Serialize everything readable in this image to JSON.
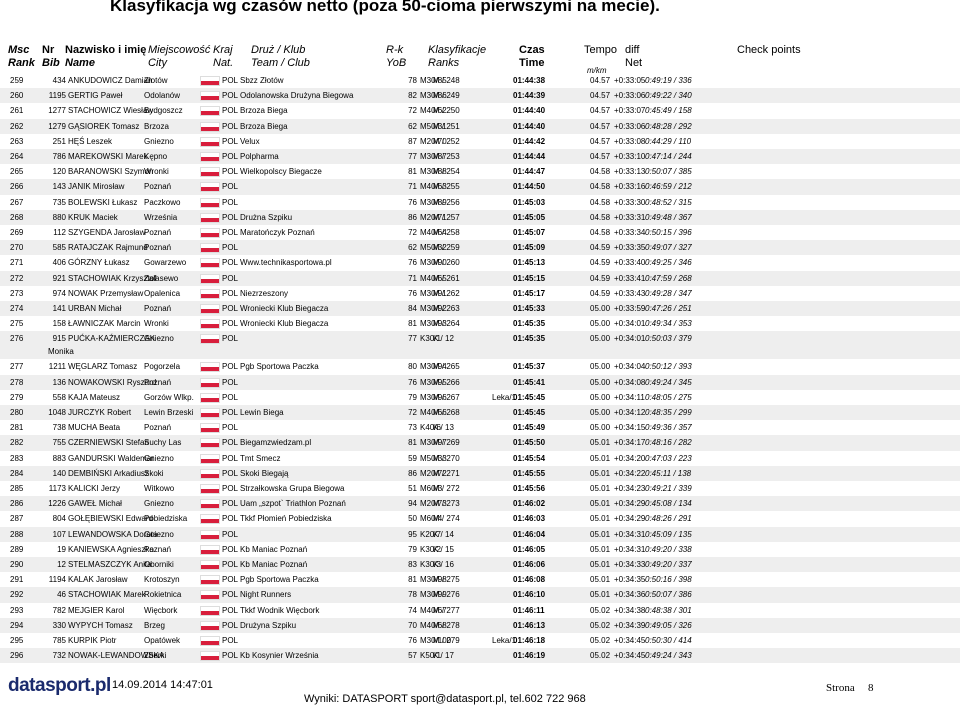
{
  "title": "Klasyfikacja wg czasów netto (poza 50-cioma pierwszymi na mecie).",
  "header": {
    "top": [
      "Msc",
      "Nr",
      "Nazwisko i imię",
      "Miejscowość",
      "Kraj",
      "Druż / Klub",
      "R-k",
      "Klasyfikacje",
      "Czas",
      "Tempo",
      "diff",
      "Check points"
    ],
    "bottom": [
      "Rank",
      "Bib",
      "Name",
      "City",
      "Nat.",
      "Team / Club",
      "YoB",
      "Ranks",
      "Time",
      "m/km",
      "Net"
    ]
  },
  "rows": [
    {
      "cells": [
        "259",
        "434",
        "ANKUDOWICZ Damian",
        "Złotów",
        "POL",
        "Sbzz Złotów",
        "78",
        "M30/85",
        "M / 248",
        "01:44:38",
        "04.57",
        "+0:33:05",
        "0:49:19 / 336"
      ]
    },
    {
      "cells": [
        "260",
        "1195",
        "GERTIG Paweł",
        "Odolanów",
        "POL",
        "Odolanowska Drużyna Biegowa",
        "82",
        "M30/86",
        "M / 249",
        "01:44:39",
        "04.57",
        "+0:33:06",
        "0:49:22 / 340"
      ]
    },
    {
      "cells": [
        "261",
        "1277",
        "STACHOWICZ Wiesław",
        "Bydgoszcz",
        "POL",
        "Brzoza Biega",
        "72",
        "M40/62",
        "M / 250",
        "01:44:40",
        "04.57",
        "+0:33:07",
        "0:45:49 / 158"
      ]
    },
    {
      "cells": [
        "262",
        "1279",
        "GĄSIOREK Tomasz",
        "Brzoza",
        "POL",
        "Brzoza Biega",
        "62",
        "M50/31",
        "M / 251",
        "01:44:40",
        "04.57",
        "+0:33:06",
        "0:48:28 / 292"
      ]
    },
    {
      "cells": [
        "263",
        "251",
        "HĘŚ Leszek",
        "Gniezno",
        "POL",
        "Velux",
        "87",
        "M20/70",
        "M / 252",
        "01:44:42",
        "04.57",
        "+0:33:08",
        "0:44:29 / 110"
      ]
    },
    {
      "cells": [
        "264",
        "786",
        "MAREKOWSKI Marek",
        "Kępno",
        "POL",
        "Polpharma",
        "77",
        "M30/87",
        "M / 253",
        "01:44:44",
        "04.57",
        "+0:33:10",
        "0:47:14 / 244"
      ]
    },
    {
      "cells": [
        "265",
        "120",
        "BARANOWSKI Szymon",
        "Wronki",
        "POL",
        "Wielkopolscy Biegacze",
        "81",
        "M30/88",
        "M / 254",
        "01:44:47",
        "04.58",
        "+0:33:13",
        "0:50:07 / 385"
      ]
    },
    {
      "cells": [
        "266",
        "143",
        "JANIK Mirosław",
        "Poznań",
        "POL",
        "",
        "71",
        "M40/63",
        "M / 255",
        "01:44:50",
        "04.58",
        "+0:33:16",
        "0:46:59 / 212"
      ]
    },
    {
      "cells": [
        "267",
        "735",
        "BOLEWSKI Łukasz",
        "Paczkowo",
        "POL",
        "",
        "76",
        "M30/89",
        "M / 256",
        "01:45:03",
        "04.58",
        "+0:33:30",
        "0:48:52 / 315"
      ]
    },
    {
      "cells": [
        "268",
        "880",
        "KRUK Maciek",
        "Września",
        "POL",
        "Drużna Szpiku",
        "86",
        "M20/71",
        "M / 257",
        "01:45:05",
        "04.58",
        "+0:33:31",
        "0:49:48 / 367"
      ]
    },
    {
      "cells": [
        "269",
        "112",
        "SZYGENDA Jarosław",
        "Poznań",
        "POL",
        "Maratończyk Poznań",
        "72",
        "M40/64",
        "M / 258",
        "01:45:07",
        "04.58",
        "+0:33:34",
        "0:50:15 / 396"
      ]
    },
    {
      "cells": [
        "270",
        "585",
        "RATAJCZAK Rajmund",
        "Poznań",
        "POL",
        "",
        "62",
        "M50/32",
        "M / 259",
        "01:45:09",
        "04.59",
        "+0:33:35",
        "0:49:07 / 327"
      ]
    },
    {
      "cells": [
        "271",
        "406",
        "GÓRZNY Łukasz",
        "Gowarzewo",
        "POL",
        "Www.technikasportowa.pl",
        "76",
        "M30/90",
        "M / 260",
        "01:45:13",
        "04.59",
        "+0:33:40",
        "0:49:25 / 346"
      ]
    },
    {
      "cells": [
        "272",
        "921",
        "STACHOWIAK Krzysztof",
        "Zalasewo",
        "POL",
        "",
        "71",
        "M40/65",
        "M / 261",
        "01:45:15",
        "04.59",
        "+0:33:41",
        "0:47:59 / 268"
      ]
    },
    {
      "cells": [
        "273",
        "974",
        "NOWAK Przemysław",
        "Opalenica",
        "POL",
        "Niezrzeszony",
        "76",
        "M30/91",
        "M / 262",
        "01:45:17",
        "04.59",
        "+0:33:43",
        "0:49:28 / 347"
      ]
    },
    {
      "cells": [
        "274",
        "141",
        "URBAN Michał",
        "Poznań",
        "POL",
        "Wroniecki Klub Biegacza",
        "84",
        "M30/92",
        "M / 263",
        "01:45:33",
        "05.00",
        "+0:33:59",
        "0:47:26 / 251"
      ]
    },
    {
      "cells": [
        "275",
        "158",
        "ŁAWNICZAK Marcin",
        "Wronki",
        "POL",
        "Wroniecki Klub Biegacza",
        "81",
        "M30/93",
        "M / 264",
        "01:45:35",
        "05.00",
        "+0:34:01",
        "0:49:34 / 353"
      ]
    },
    {
      "cells": [
        "276",
        "915",
        "PUĆKA-KAŹMIERCZAK",
        "Gniezno",
        "POL",
        "",
        "77",
        "K30/1",
        "K / 12",
        "01:45:35",
        "05.00",
        "+0:34:01",
        "0:50:03 / 379"
      ],
      "name2": "Monika"
    },
    {
      "cells": [
        "277",
        "1211",
        "WĘGLARZ Tomasz",
        "Pogorzela",
        "POL",
        "Pgb Sportowa Paczka",
        "80",
        "M30/94",
        "M / 265",
        "01:45:37",
        "05.00",
        "+0:34:04",
        "0:50:12 / 393"
      ]
    },
    {
      "cells": [
        "278",
        "136",
        "NOWAKOWSKI Ryszard",
        "Poznań",
        "POL",
        "",
        "76",
        "M30/95",
        "M / 266",
        "01:45:41",
        "05.00",
        "+0:34:08",
        "0:49:24 / 345"
      ]
    },
    {
      "cells": [
        "279",
        "558",
        "KAJA Mateusz",
        "Gorzów Wlkp.",
        "POL",
        "",
        "79",
        "M30/96",
        "M / 267",
        "01:45:45",
        "05.00",
        "+0:34:11",
        "0:48:05 / 275"
      ],
      "note": "Leka/1"
    },
    {
      "cells": [
        "280",
        "1048",
        "JURCZYK Robert",
        "Lewin Brzeski",
        "POL",
        "Lewin Biega",
        "72",
        "M40/66",
        "M / 268",
        "01:45:45",
        "05.00",
        "+0:34:12",
        "0:48:35 / 299"
      ]
    },
    {
      "cells": [
        "281",
        "738",
        "MUCHA Beata",
        "Poznań",
        "POL",
        "",
        "73",
        "K40/6",
        "K / 13",
        "01:45:49",
        "05.00",
        "+0:34:15",
        "0:49:36 / 357"
      ]
    },
    {
      "cells": [
        "282",
        "755",
        "CZERNIEWSKI Stefan",
        "Suchy Las",
        "POL",
        "Biegamzwiedzam.pl",
        "81",
        "M30/97",
        "M / 269",
        "01:45:50",
        "05.01",
        "+0:34:17",
        "0:48:16 / 282"
      ]
    },
    {
      "cells": [
        "283",
        "883",
        "GANDURSKI Waldemar",
        "Gniezno",
        "POL",
        "Tmt Smecz",
        "59",
        "M50/33",
        "M / 270",
        "01:45:54",
        "05.01",
        "+0:34:20",
        "0:47:03 / 223"
      ]
    },
    {
      "cells": [
        "284",
        "140",
        "DEMBIŃSKI Arkadiusz",
        "Skoki",
        "POL",
        "Skoki Biegają",
        "86",
        "M20/72",
        "M / 271",
        "01:45:55",
        "05.01",
        "+0:34:22",
        "0:45:11 / 138"
      ]
    },
    {
      "cells": [
        "285",
        "1173",
        "KALICKI Jerzy",
        "Witkowo",
        "POL",
        "Strzałkowska Grupa Biegowa",
        "51",
        "M60/3",
        "M / 272",
        "01:45:56",
        "05.01",
        "+0:34:23",
        "0:49:21 / 339"
      ]
    },
    {
      "cells": [
        "286",
        "1226",
        "GAWEŁ Michał",
        "Gniezno",
        "POL",
        "Uam „szpot` Triathlon Poznań",
        "94",
        "M20/73",
        "M / 273",
        "01:46:02",
        "05.01",
        "+0:34:29",
        "0:45:08 / 134"
      ]
    },
    {
      "cells": [
        "287",
        "804",
        "GOŁĘBIEWSKI Edward",
        "Pobiedziska",
        "POL",
        "Tkkf Płomień Pobiedziska",
        "50",
        "M60/4",
        "M / 274",
        "01:46:03",
        "05.01",
        "+0:34:29",
        "0:48:26 / 291"
      ]
    },
    {
      "cells": [
        "288",
        "107",
        "LEWANDOWSKA Dorota",
        "Gniezno",
        "POL",
        "",
        "95",
        "K20/7",
        "K / 14",
        "01:46:04",
        "05.01",
        "+0:34:31",
        "0:45:09 / 135"
      ]
    },
    {
      "cells": [
        "289",
        "19",
        "KANIEWSKA Agnieszka",
        "Poznań",
        "POL",
        "Kb Maniac Poznań",
        "79",
        "K30/2",
        "K / 15",
        "01:46:05",
        "05.01",
        "+0:34:31",
        "0:49:20 / 338"
      ]
    },
    {
      "cells": [
        "290",
        "12",
        "STELMASZCZYK Anita",
        "Oborniki",
        "POL",
        "Kb Maniac Poznań",
        "83",
        "K30/3",
        "K / 16",
        "01:46:06",
        "05.01",
        "+0:34:33",
        "0:49:20 / 337"
      ]
    },
    {
      "cells": [
        "291",
        "1194",
        "KALAK Jarosław",
        "Krotoszyn",
        "POL",
        "Pgb Sportowa Paczka",
        "81",
        "M30/98",
        "M / 275",
        "01:46:08",
        "05.01",
        "+0:34:35",
        "0:50:16 / 398"
      ]
    },
    {
      "cells": [
        "292",
        "46",
        "STACHOWIAK Marek",
        "Rokietnica",
        "POL",
        "Night Runners",
        "78",
        "M30/99",
        "M / 276",
        "01:46:10",
        "05.01",
        "+0:34:36",
        "0:50:07 / 386"
      ]
    },
    {
      "cells": [
        "293",
        "782",
        "MEJGIER Karol",
        "Więcbork",
        "POL",
        "Tkkf Wodnik Więcbork",
        "74",
        "M40/67",
        "M / 277",
        "01:46:11",
        "05.02",
        "+0:34:38",
        "0:48:38 / 301"
      ]
    },
    {
      "cells": [
        "294",
        "330",
        "WYPYCH Tomasz",
        "Brzeg",
        "POL",
        "Drużyna Szpiku",
        "70",
        "M40/68",
        "M / 278",
        "01:46:13",
        "05.02",
        "+0:34:39",
        "0:49:05 / 326"
      ]
    },
    {
      "cells": [
        "295",
        "785",
        "KURPIK Piotr",
        "Opatówek",
        "POL",
        "",
        "76",
        "M30/100",
        "M / 279",
        "01:46:18",
        "05.02",
        "+0:34:45",
        "0:50:30 / 414"
      ],
      "note": "Leka/1"
    },
    {
      "cells": [
        "296",
        "732",
        "NOWAK-LEWANDOWSKA",
        "Zberki",
        "POL",
        "Kb Kosynier Września",
        "57",
        "K50/1",
        "K / 17",
        "01:46:19",
        "05.02",
        "+0:34:45",
        "0:49:24 / 343"
      ]
    }
  ],
  "footer": {
    "logo": "datasport.pl",
    "date": "14.09.2014 14:47:01",
    "contact": "Wyniki: DATASPORT sport@datasport.pl, tel.602 722 968",
    "page_label": "Strona",
    "page": "8"
  }
}
